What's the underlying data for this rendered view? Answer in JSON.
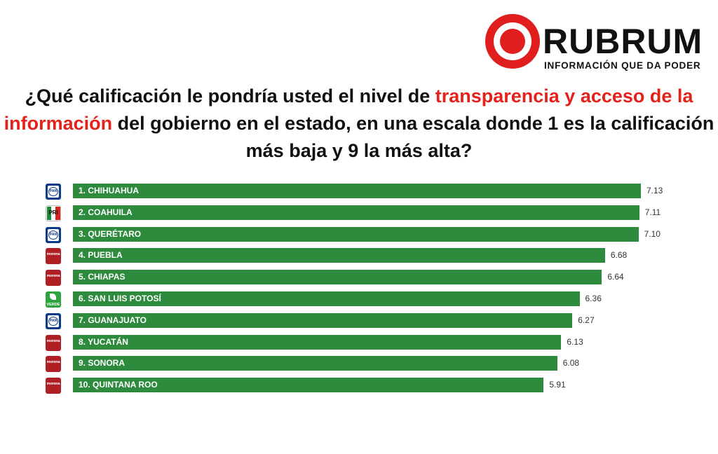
{
  "logo": {
    "name": "RUBRUM",
    "tagline": "INFORMACIÓN QUE DA PODER"
  },
  "question": {
    "part1": "¿Qué calificación le pondría usted el nivel de ",
    "highlight": "transparencia y acceso de la información",
    "part2": " del gobierno en el estado, en una escala donde 1 es la calificación más baja y 9 la más alta?"
  },
  "colors": {
    "bar": "#2e8b3e",
    "highlight": "#e3231b",
    "pan": "#0b3a8d",
    "morena": "#b01f24",
    "verde": "#2fa33d"
  },
  "party_icons": {
    "pan": "PAN",
    "pri": "PRI",
    "morena": "morena",
    "verde": "VERDE"
  },
  "chart_data": {
    "type": "bar",
    "orientation": "horizontal",
    "categories": [
      "1. CHIHUAHUA",
      "2. COAHUILA",
      "3. QUERÉTARO",
      "4. PUEBLA",
      "5. CHIAPAS",
      "6. SAN LUIS POTOSÍ",
      "7. GUANAJUATO",
      "8. YUCATÁN",
      "9. SONORA",
      "10. QUINTANA ROO"
    ],
    "values": [
      7.13,
      7.11,
      7.1,
      6.68,
      6.64,
      6.36,
      6.27,
      6.13,
      6.08,
      5.91
    ],
    "value_labels": [
      "7.13",
      "7.11",
      "7.10",
      "6.68",
      "6.64",
      "6.36",
      "6.27",
      "6.13",
      "6.08",
      "5.91"
    ],
    "parties": [
      "pan",
      "pri",
      "pan",
      "morena",
      "morena",
      "verde",
      "pan",
      "morena",
      "morena",
      "morena"
    ],
    "xlim": [
      0,
      9
    ],
    "grid": false,
    "legend": "none"
  }
}
